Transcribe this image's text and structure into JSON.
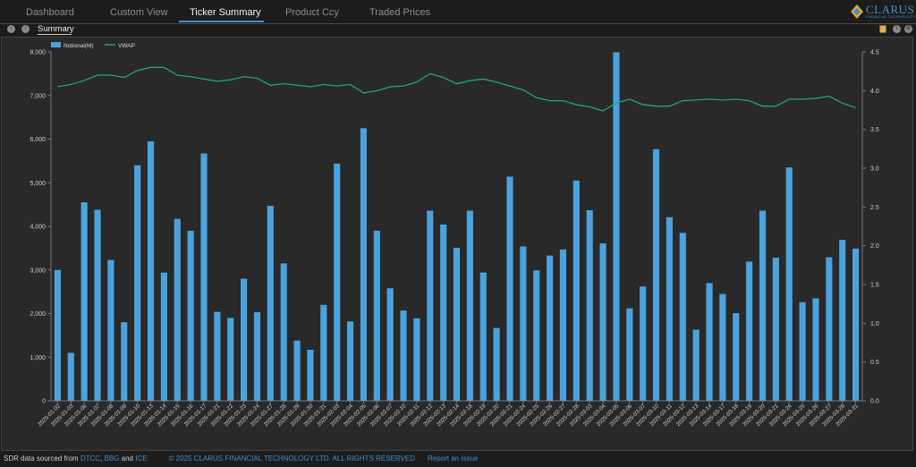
{
  "nav": {
    "tabs": [
      {
        "label": "Dashboard"
      },
      {
        "label": "Custom View"
      },
      {
        "label": "Ticker Summary",
        "active": true
      },
      {
        "label": "Product Ccy"
      },
      {
        "label": "Traded Prices"
      }
    ],
    "logo_text": "CLARUS",
    "logo_subtext": "FINANCIAL TECHNOLOGY"
  },
  "subnav": {
    "tab_label": "Summary"
  },
  "colors": {
    "accent": "#3d8fd1",
    "bar": "#4aa3de",
    "vwap": "#1fa67a",
    "background": "#1c1c1c",
    "panel": "#292929"
  },
  "footer": {
    "prefix": "SDR data sourced from ",
    "src1": "DTCC",
    "sep1": ", ",
    "src2": "BBG",
    "sep2": " and ",
    "src3": "ICE",
    "copyright": "© 2025 CLARUS FINANCIAL TECHNOLOGY LTD. ALL RIGHTS RESERVED",
    "report": "Report an Issue"
  },
  "chart_data": {
    "type": "bar",
    "legend_position": "top-left",
    "grid": false,
    "y_left": {
      "ylim": [
        0,
        8000
      ],
      "ticks": [
        "0",
        "1,000",
        "2,000",
        "3,000",
        "4,000",
        "5,000",
        "6,000",
        "7,000",
        "8,000"
      ]
    },
    "y_right": {
      "ylim": [
        0,
        4.5
      ],
      "ticks": [
        "0.0",
        "0.5",
        "1.0",
        "1.5",
        "2.0",
        "2.5",
        "3.0",
        "3.5",
        "4.0",
        "4.5"
      ]
    },
    "categories": [
      "2025-01-02",
      "2025-01-03",
      "2025-01-06",
      "2025-01-07",
      "2025-01-08",
      "2025-01-09",
      "2025-01-10",
      "2025-01-13",
      "2025-01-14",
      "2025-01-15",
      "2025-01-16",
      "2025-01-17",
      "2025-01-21",
      "2025-01-22",
      "2025-01-23",
      "2025-01-24",
      "2025-01-27",
      "2025-01-28",
      "2025-01-29",
      "2025-01-30",
      "2025-01-31",
      "2025-02-03",
      "2025-02-04",
      "2025-02-05",
      "2025-02-06",
      "2025-02-07",
      "2025-02-10",
      "2025-02-11",
      "2025-02-12",
      "2025-02-13",
      "2025-02-14",
      "2025-02-18",
      "2025-02-19",
      "2025-02-20",
      "2025-02-21",
      "2025-02-24",
      "2025-02-25",
      "2025-02-26",
      "2025-02-27",
      "2025-02-28",
      "2025-03-03",
      "2025-03-04",
      "2025-03-05",
      "2025-03-06",
      "2025-03-07",
      "2025-03-10",
      "2025-03-11",
      "2025-03-12",
      "2025-03-13",
      "2025-03-14",
      "2025-03-17",
      "2025-03-18",
      "2025-03-19",
      "2025-03-20",
      "2025-03-21",
      "2025-03-24",
      "2025-03-25",
      "2025-03-26",
      "2025-03-27",
      "2025-03-28",
      "2025-03-31"
    ],
    "series": [
      {
        "name": "Notional(M)",
        "type": "bar",
        "axis": "left",
        "values": [
          3000,
          1100,
          4550,
          4380,
          3230,
          1800,
          5400,
          5950,
          2940,
          4170,
          3900,
          5670,
          2040,
          1900,
          2800,
          2030,
          4470,
          3150,
          1380,
          1170,
          2200,
          5440,
          1820,
          6250,
          3900,
          2580,
          2070,
          1890,
          4360,
          4040,
          3510,
          4360,
          2940,
          1670,
          5140,
          3540,
          2990,
          3330,
          3470,
          5050,
          4370,
          3610,
          7990,
          2120,
          2620,
          5770,
          4210,
          3850,
          1630,
          2700,
          2450,
          2010,
          3190,
          4360,
          3280,
          5350,
          2260,
          2350,
          3290,
          3690,
          3490
        ]
      },
      {
        "name": "VWAP",
        "type": "line",
        "axis": "right",
        "values": [
          4.05,
          4.08,
          4.13,
          4.2,
          4.2,
          4.17,
          4.26,
          4.3,
          4.3,
          4.2,
          4.18,
          4.15,
          4.12,
          4.14,
          4.18,
          4.16,
          4.07,
          4.09,
          4.07,
          4.05,
          4.08,
          4.06,
          4.08,
          3.97,
          4.0,
          4.05,
          4.06,
          4.11,
          4.22,
          4.17,
          4.09,
          4.13,
          4.15,
          4.11,
          4.06,
          4.01,
          3.91,
          3.87,
          3.87,
          3.82,
          3.79,
          3.74,
          3.84,
          3.89,
          3.82,
          3.8,
          3.8,
          3.87,
          3.88,
          3.89,
          3.88,
          3.89,
          3.87,
          3.8,
          3.8,
          3.89,
          3.89,
          3.9,
          3.93,
          3.84,
          3.78
        ]
      }
    ]
  }
}
